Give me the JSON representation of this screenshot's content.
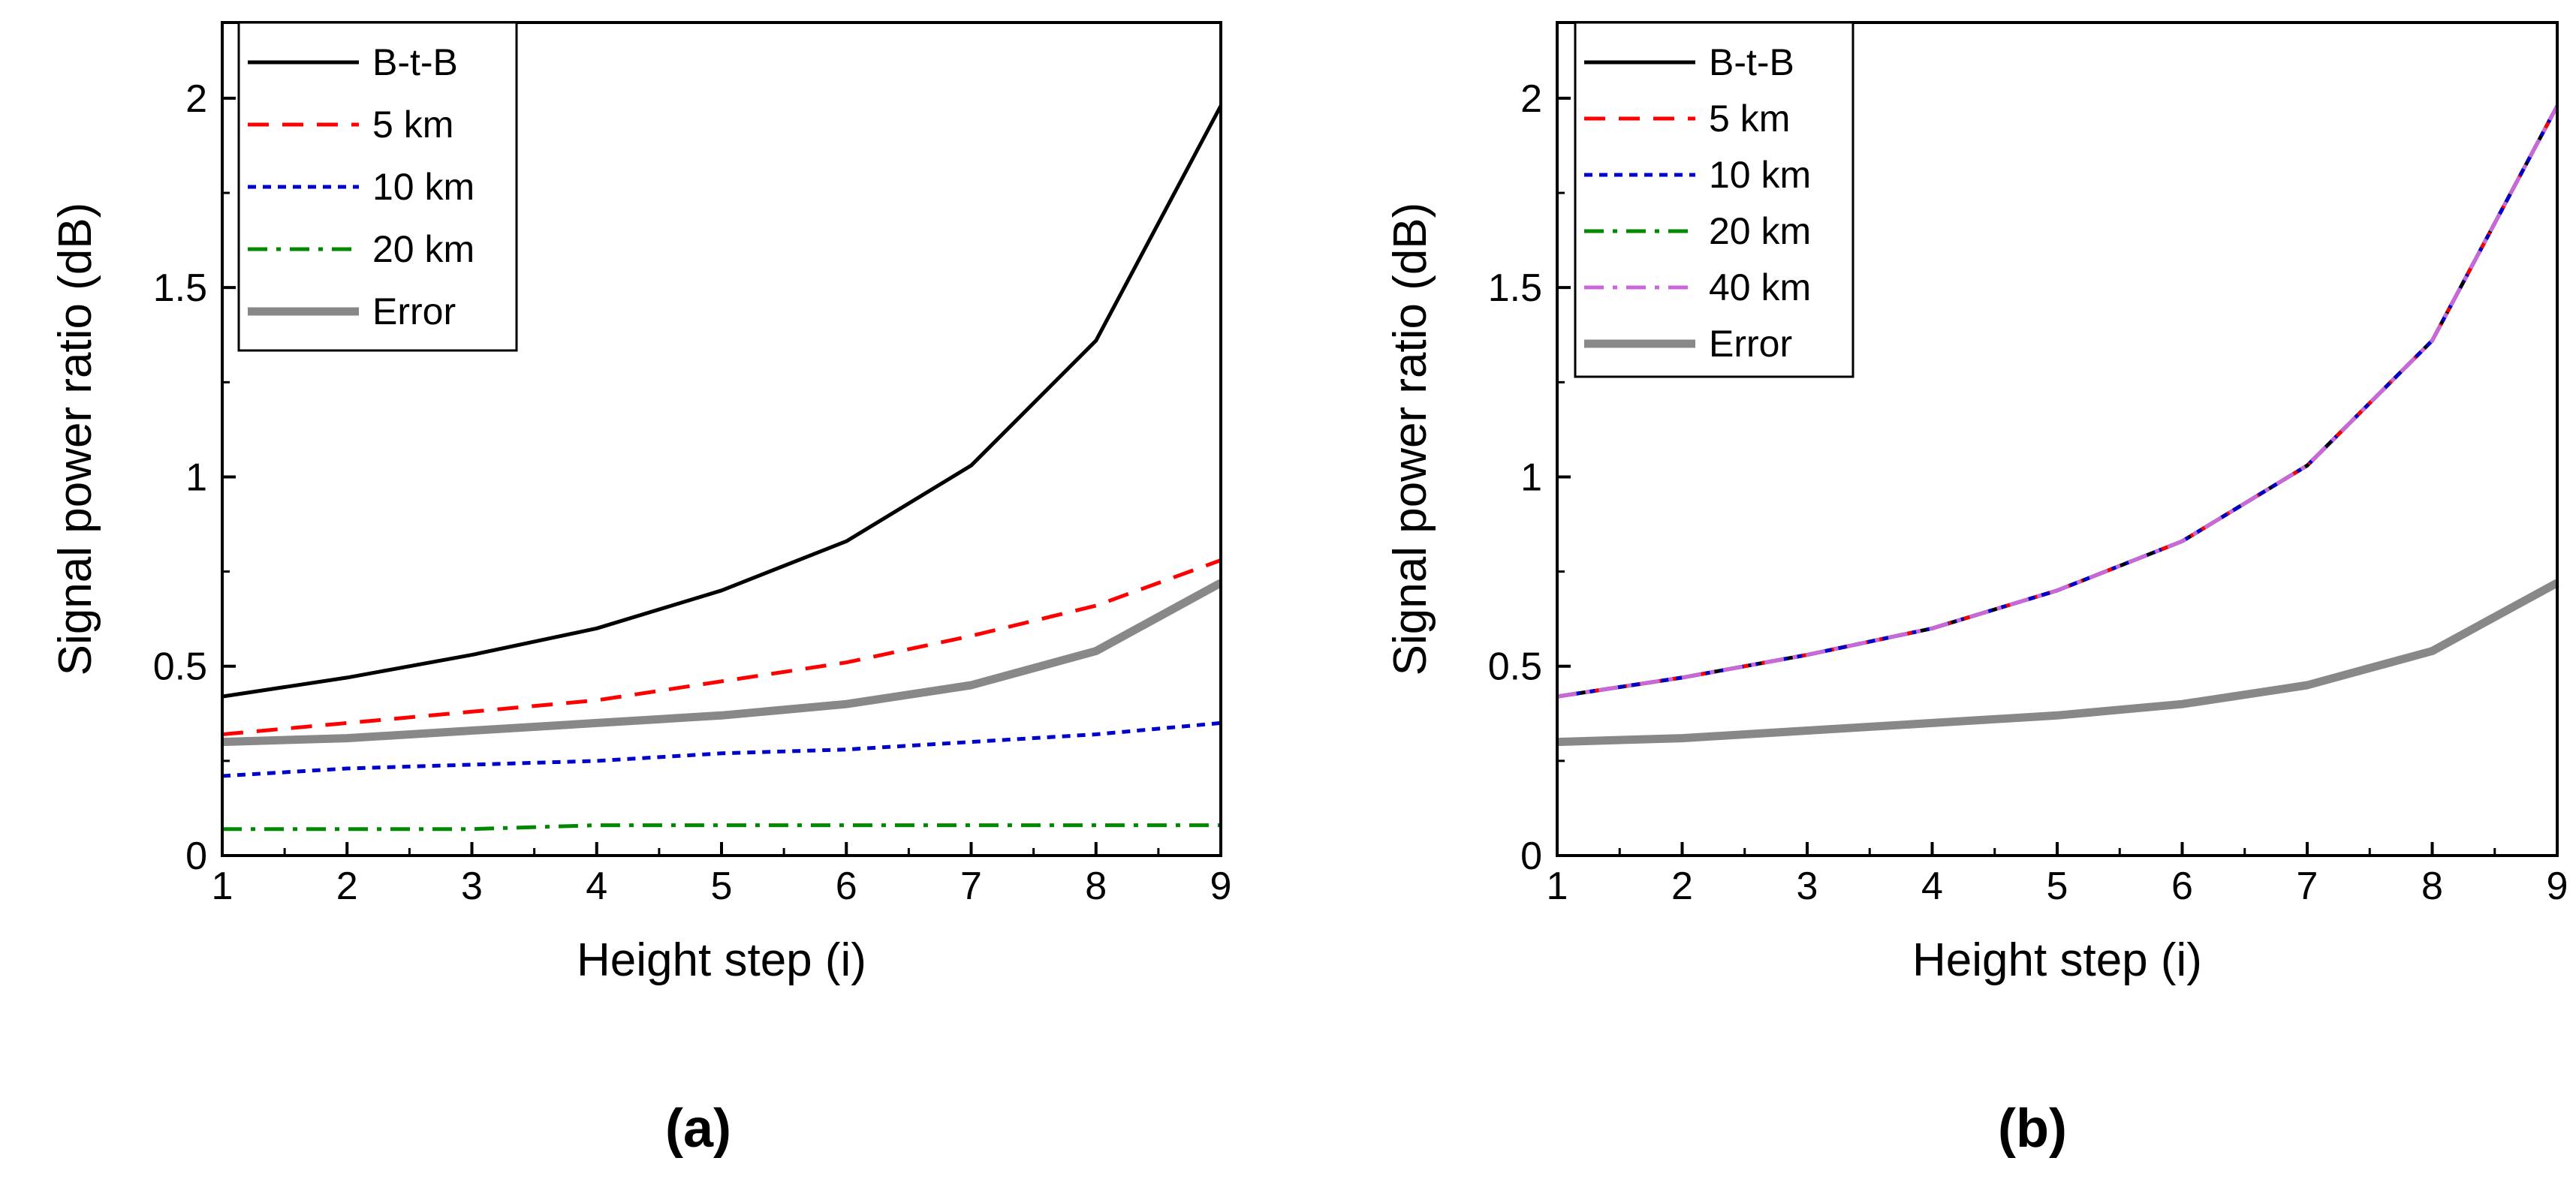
{
  "chart_data": [
    {
      "type": "line",
      "panel_label": "(a)",
      "xlabel": "Height step (i)",
      "ylabel": "Signal power ratio (dB)",
      "xlim": [
        1,
        9
      ],
      "ylim": [
        0,
        2.2
      ],
      "x_ticks": [
        "1",
        "2",
        "3",
        "4",
        "5",
        "6",
        "7",
        "8",
        "9"
      ],
      "y_ticks": [
        "0",
        "0.5",
        "1",
        "1.5",
        "2"
      ],
      "x": [
        1,
        2,
        3,
        4,
        5,
        6,
        7,
        8,
        9
      ],
      "legend_position": "top-left",
      "series": [
        {
          "name": "B-t-B",
          "color": "#000000",
          "dash": "solid",
          "values": [
            0.42,
            0.47,
            0.53,
            0.6,
            0.7,
            0.83,
            1.03,
            1.36,
            1.98
          ]
        },
        {
          "name": "5 km",
          "color": "#ff0000",
          "dash": "dash",
          "values": [
            0.32,
            0.35,
            0.38,
            0.41,
            0.46,
            0.51,
            0.58,
            0.66,
            0.78
          ]
        },
        {
          "name": "10 km",
          "color": "#0000cc",
          "dash": "dot",
          "values": [
            0.21,
            0.23,
            0.24,
            0.25,
            0.27,
            0.28,
            0.3,
            0.32,
            0.35
          ]
        },
        {
          "name": "20 km",
          "color": "#008800",
          "dash": "dashdot",
          "values": [
            0.07,
            0.07,
            0.07,
            0.08,
            0.08,
            0.08,
            0.08,
            0.08,
            0.08
          ]
        },
        {
          "name": "Error",
          "color": "#888888",
          "dash": "thick",
          "values": [
            0.3,
            0.31,
            0.33,
            0.35,
            0.37,
            0.4,
            0.45,
            0.54,
            0.72
          ]
        }
      ]
    },
    {
      "type": "line",
      "panel_label": "(b)",
      "xlabel": "Height step (i)",
      "ylabel": "Signal power ratio (dB)",
      "xlim": [
        1,
        9
      ],
      "ylim": [
        0,
        2.2
      ],
      "x_ticks": [
        "1",
        "2",
        "3",
        "4",
        "5",
        "6",
        "7",
        "8",
        "9"
      ],
      "y_ticks": [
        "0",
        "0.5",
        "1",
        "1.5",
        "2"
      ],
      "x": [
        1,
        2,
        3,
        4,
        5,
        6,
        7,
        8,
        9
      ],
      "legend_position": "top-left",
      "series": [
        {
          "name": "B-t-B",
          "color": "#000000",
          "dash": "solid",
          "values": [
            0.42,
            0.47,
            0.53,
            0.6,
            0.7,
            0.83,
            1.03,
            1.36,
            1.98
          ]
        },
        {
          "name": "5 km",
          "color": "#ff0000",
          "dash": "dash",
          "values": [
            0.42,
            0.47,
            0.53,
            0.6,
            0.7,
            0.83,
            1.03,
            1.36,
            1.98
          ]
        },
        {
          "name": "10 km",
          "color": "#0000cc",
          "dash": "dot",
          "values": [
            0.42,
            0.47,
            0.53,
            0.6,
            0.7,
            0.83,
            1.03,
            1.36,
            1.98
          ]
        },
        {
          "name": "20 km",
          "color": "#008800",
          "dash": "dashdot",
          "values": [
            0.42,
            0.47,
            0.53,
            0.6,
            0.7,
            0.83,
            1.03,
            1.36,
            1.98
          ]
        },
        {
          "name": "40 km",
          "color": "#cc66dd",
          "dash": "dashdot",
          "values": [
            0.42,
            0.47,
            0.53,
            0.6,
            0.7,
            0.83,
            1.03,
            1.36,
            1.98
          ]
        },
        {
          "name": "Error",
          "color": "#888888",
          "dash": "thick",
          "values": [
            0.3,
            0.31,
            0.33,
            0.35,
            0.37,
            0.4,
            0.45,
            0.54,
            0.72
          ]
        }
      ]
    }
  ]
}
